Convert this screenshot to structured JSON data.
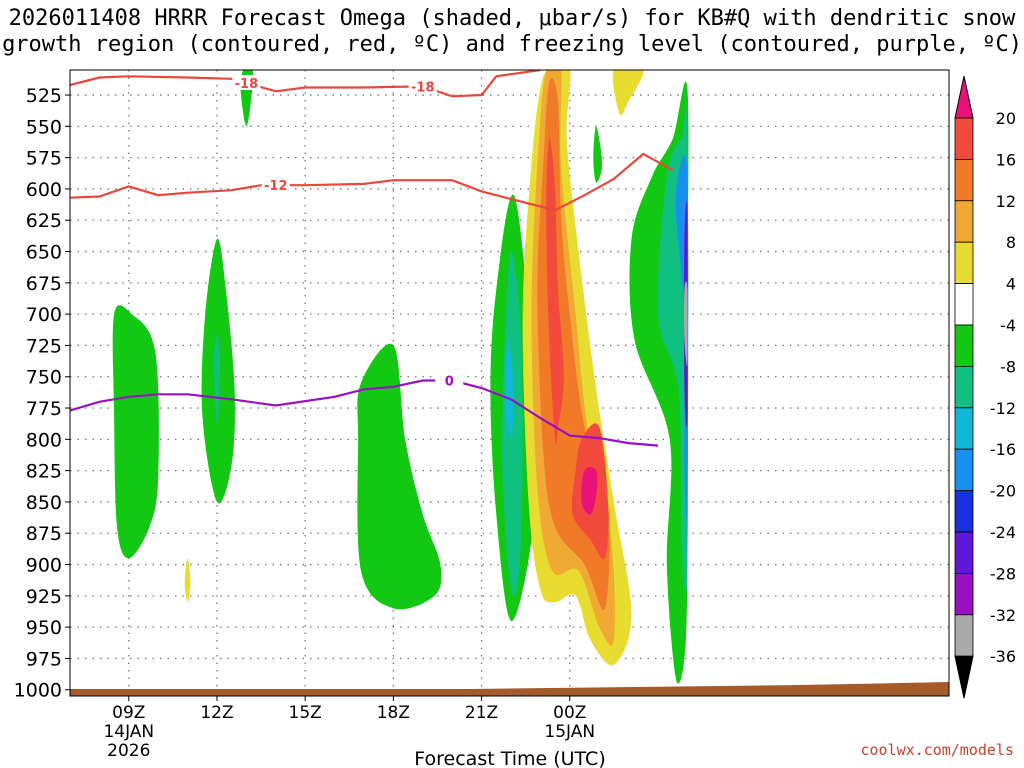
{
  "chart_data": {
    "type": "heatmap",
    "title_line1": "2026011408 HRRR Forecast Omega (shaded, μbar/s) for KB#Q with dendritic snow",
    "title_line2": "growth region (contoured, red, ºC) and freezing level (contoured, purple, ºC)",
    "xlabel": "Forecast Time (UTC)",
    "watermark": "coolwx.com/models",
    "x_range_hours": [
      7.0,
      36.9
    ],
    "y_range_mb": [
      505,
      1005
    ],
    "y_ticks": [
      "525",
      "550",
      "575",
      "600",
      "625",
      "650",
      "675",
      "700",
      "725",
      "750",
      "775",
      "800",
      "825",
      "850",
      "875",
      "900",
      "925",
      "950",
      "975",
      "1000"
    ],
    "x_ticks": [
      {
        "hour": 9,
        "label": "09Z",
        "sub1": "14JAN",
        "sub2": "2026"
      },
      {
        "hour": 12,
        "label": "12Z",
        "sub1": "",
        "sub2": ""
      },
      {
        "hour": 15,
        "label": "15Z",
        "sub1": "",
        "sub2": ""
      },
      {
        "hour": 18,
        "label": "18Z",
        "sub1": "",
        "sub2": ""
      },
      {
        "hour": 21,
        "label": "21Z",
        "sub1": "",
        "sub2": ""
      },
      {
        "hour": 24,
        "label": "00Z",
        "sub1": "15JAN",
        "sub2": ""
      }
    ],
    "colorbar": {
      "labels": [
        "20",
        "16",
        "12",
        "8",
        "4",
        "-4",
        "-8",
        "-12",
        "-16",
        "-20",
        "-24",
        "-28",
        "-32",
        "-36"
      ],
      "colors": [
        "#e8127a",
        "#f24a3c",
        "#f07a28",
        "#f0aa34",
        "#e8dc30",
        "#ffffff",
        "#12c812",
        "#10c080",
        "#10b8d8",
        "#1890f0",
        "#1830e0",
        "#6018d8",
        "#9810c0",
        "#aaaaaa",
        "#000000"
      ]
    },
    "omega_regions": [
      {
        "level": "-4",
        "points": [
          [
            8.5,
            700
          ],
          [
            9.1,
            700
          ],
          [
            9.9,
            730
          ],
          [
            10.0,
            830
          ],
          [
            9.7,
            870
          ],
          [
            9.0,
            895
          ],
          [
            8.6,
            870
          ],
          [
            8.5,
            780
          ]
        ]
      },
      {
        "level": "-4",
        "points": [
          [
            12.0,
            640
          ],
          [
            12.3,
            680
          ],
          [
            12.6,
            760
          ],
          [
            12.5,
            820
          ],
          [
            12.0,
            850
          ],
          [
            11.5,
            780
          ],
          [
            11.6,
            700
          ]
        ]
      },
      {
        "level": "-8",
        "points": [
          [
            12.0,
            715
          ],
          [
            12.1,
            740
          ],
          [
            12.0,
            790
          ],
          [
            11.9,
            740
          ]
        ]
      },
      {
        "level": "-4",
        "points": [
          [
            12.9,
            505
          ],
          [
            13.2,
            505
          ],
          [
            13.2,
            520
          ],
          [
            13.0,
            550
          ],
          [
            12.8,
            520
          ]
        ]
      },
      {
        "level": "4",
        "points": [
          [
            11.0,
            895
          ],
          [
            11.1,
            915
          ],
          [
            11.0,
            930
          ],
          [
            10.9,
            915
          ]
        ]
      },
      {
        "level": "-4",
        "points": [
          [
            18.0,
            725
          ],
          [
            18.4,
            800
          ],
          [
            19.0,
            860
          ],
          [
            19.6,
            900
          ],
          [
            19.4,
            925
          ],
          [
            18.0,
            935
          ],
          [
            16.9,
            905
          ],
          [
            16.8,
            800
          ],
          [
            16.9,
            755
          ]
        ]
      },
      {
        "level": "-4",
        "points": [
          [
            22.1,
            605
          ],
          [
            22.7,
            720
          ],
          [
            22.9,
            780
          ],
          [
            22.7,
            880
          ],
          [
            22.0,
            945
          ],
          [
            21.5,
            860
          ],
          [
            21.3,
            760
          ],
          [
            21.5,
            680
          ]
        ]
      },
      {
        "level": "-8",
        "points": [
          [
            22.0,
            650
          ],
          [
            22.3,
            700
          ],
          [
            22.4,
            800
          ],
          [
            22.3,
            900
          ],
          [
            22.0,
            920
          ],
          [
            21.7,
            820
          ],
          [
            21.8,
            720
          ]
        ]
      },
      {
        "level": "-12",
        "points": [
          [
            21.9,
            720
          ],
          [
            22.1,
            760
          ],
          [
            22.0,
            800
          ],
          [
            21.8,
            770
          ]
        ]
      },
      {
        "level": "4",
        "points": [
          [
            23.3,
            505
          ],
          [
            24.0,
            505
          ],
          [
            23.9,
            560
          ],
          [
            24.3,
            650
          ],
          [
            24.9,
            760
          ],
          [
            25.5,
            850
          ],
          [
            26.1,
            940
          ],
          [
            25.5,
            980
          ],
          [
            24.7,
            960
          ],
          [
            24.2,
            925
          ],
          [
            23.5,
            930
          ],
          [
            23.0,
            920
          ],
          [
            22.6,
            850
          ],
          [
            22.4,
            700
          ],
          [
            22.7,
            580
          ],
          [
            23.0,
            520
          ]
        ]
      },
      {
        "level": "8",
        "points": [
          [
            23.2,
            505
          ],
          [
            23.7,
            505
          ],
          [
            23.7,
            580
          ],
          [
            24.2,
            700
          ],
          [
            24.6,
            790
          ],
          [
            25.4,
            880
          ],
          [
            25.5,
            960
          ],
          [
            25.0,
            950
          ],
          [
            24.3,
            905
          ],
          [
            23.4,
            905
          ],
          [
            22.9,
            840
          ],
          [
            22.7,
            700
          ],
          [
            22.9,
            580
          ]
        ]
      },
      {
        "level": "12",
        "points": [
          [
            23.3,
            515
          ],
          [
            23.6,
            530
          ],
          [
            23.7,
            620
          ],
          [
            24.0,
            700
          ],
          [
            24.5,
            790
          ],
          [
            25.3,
            850
          ],
          [
            25.2,
            935
          ],
          [
            24.5,
            900
          ],
          [
            23.5,
            870
          ],
          [
            23.1,
            810
          ],
          [
            22.9,
            680
          ],
          [
            23.1,
            580
          ]
        ]
      },
      {
        "level": "16",
        "points": [
          [
            23.3,
            560
          ],
          [
            23.5,
            600
          ],
          [
            23.6,
            680
          ],
          [
            23.8,
            750
          ],
          [
            23.6,
            790
          ],
          [
            23.5,
            800
          ],
          [
            23.3,
            720
          ],
          [
            23.2,
            620
          ]
        ]
      },
      {
        "level": "16",
        "points": [
          [
            24.4,
            800
          ],
          [
            25.0,
            790
          ],
          [
            25.3,
            850
          ],
          [
            25.2,
            895
          ],
          [
            24.7,
            880
          ],
          [
            24.1,
            860
          ],
          [
            24.2,
            825
          ]
        ]
      },
      {
        "level": "20",
        "points": [
          [
            24.5,
            825
          ],
          [
            24.9,
            825
          ],
          [
            24.9,
            845
          ],
          [
            24.7,
            860
          ],
          [
            24.4,
            850
          ]
        ]
      },
      {
        "level": "4",
        "points": [
          [
            25.5,
            505
          ],
          [
            26.5,
            505
          ],
          [
            26.0,
            530
          ],
          [
            25.7,
            540
          ]
        ]
      },
      {
        "level": "-4",
        "points": [
          [
            26.8,
            590
          ],
          [
            27.5,
            560
          ],
          [
            28.0,
            520
          ],
          [
            28.0,
            700
          ],
          [
            28.0,
            900
          ],
          [
            27.9,
            975
          ],
          [
            27.6,
            990
          ],
          [
            27.3,
            900
          ],
          [
            27.4,
            800
          ],
          [
            26.2,
            720
          ],
          [
            26.1,
            640
          ]
        ]
      },
      {
        "level": "-4",
        "points": [
          [
            24.9,
            550
          ],
          [
            25.1,
            580
          ],
          [
            24.9,
            595
          ],
          [
            24.8,
            575
          ]
        ]
      },
      {
        "level": "-8",
        "points": [
          [
            27.3,
            590
          ],
          [
            27.8,
            560
          ],
          [
            28.0,
            560
          ],
          [
            28.0,
            900
          ],
          [
            27.8,
            880
          ],
          [
            27.7,
            760
          ],
          [
            27.0,
            700
          ]
        ]
      },
      {
        "level": "-16",
        "points": [
          [
            27.6,
            610
          ],
          [
            28.0,
            590
          ],
          [
            28.0,
            850
          ],
          [
            27.9,
            820
          ],
          [
            27.9,
            700
          ]
        ]
      },
      {
        "level": "-24",
        "points": [
          [
            27.9,
            640
          ],
          [
            28.0,
            620
          ],
          [
            28.0,
            780
          ],
          [
            27.9,
            760
          ]
        ]
      },
      {
        "level": "-32",
        "points": [
          [
            27.9,
            680
          ],
          [
            28.0,
            680
          ],
          [
            28.0,
            740
          ],
          [
            27.9,
            720
          ]
        ]
      }
    ],
    "contours": [
      {
        "name": "dgz-minus18",
        "label": "-18",
        "color": "#e8483c",
        "points": [
          [
            7.0,
            517
          ],
          [
            8.0,
            511
          ],
          [
            9.0,
            510
          ],
          [
            11.0,
            511
          ],
          [
            12.5,
            512
          ],
          [
            14.0,
            522
          ],
          [
            15.0,
            519
          ],
          [
            17.0,
            519
          ],
          [
            19.0,
            518
          ],
          [
            20.0,
            526
          ],
          [
            21.0,
            525
          ],
          [
            21.5,
            510
          ],
          [
            23.0,
            505
          ]
        ]
      },
      {
        "name": "dgz-minus12",
        "label": "-12",
        "color": "#e8483c",
        "points": [
          [
            7.0,
            607
          ],
          [
            8.0,
            606
          ],
          [
            9.0,
            598
          ],
          [
            10.0,
            605
          ],
          [
            11.0,
            603
          ],
          [
            12.5,
            601
          ],
          [
            13.5,
            597
          ],
          [
            15.0,
            597
          ],
          [
            17.0,
            596
          ],
          [
            18.0,
            593
          ],
          [
            20.0,
            593
          ],
          [
            21.0,
            602
          ],
          [
            22.0,
            608
          ],
          [
            23.5,
            617
          ],
          [
            24.5,
            605
          ],
          [
            25.5,
            592
          ],
          [
            26.5,
            572
          ],
          [
            27.5,
            585
          ]
        ]
      },
      {
        "name": "freezing-level",
        "label": "0",
        "color": "#9810c0",
        "points": [
          [
            7.0,
            777
          ],
          [
            8.0,
            770
          ],
          [
            9.0,
            766
          ],
          [
            10.0,
            764
          ],
          [
            11.0,
            764
          ],
          [
            12.5,
            768
          ],
          [
            14.0,
            773
          ],
          [
            16.0,
            766
          ],
          [
            17.0,
            760
          ],
          [
            18.0,
            758
          ],
          [
            19.0,
            753
          ],
          [
            20.0,
            753
          ],
          [
            21.0,
            759
          ],
          [
            22.0,
            768
          ],
          [
            23.0,
            783
          ],
          [
            24.0,
            797
          ],
          [
            25.0,
            799
          ],
          [
            26.0,
            803
          ],
          [
            27.0,
            805
          ]
        ]
      }
    ]
  }
}
